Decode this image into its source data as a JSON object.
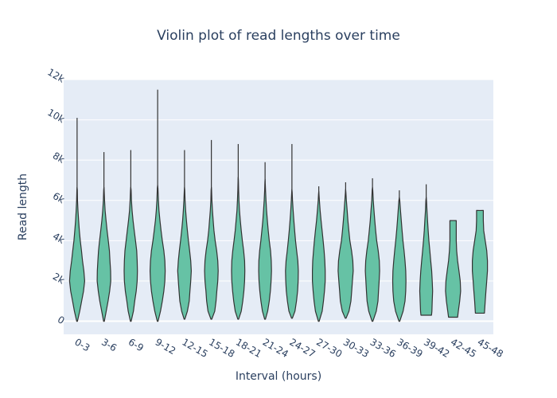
{
  "chart_data": {
    "type": "violin",
    "title": "Violin plot of read lengths over time",
    "xlabel": "Interval (hours)",
    "ylabel": "Read length",
    "ylim": [
      -650,
      12000
    ],
    "yticks": [
      0,
      2000,
      4000,
      6000,
      8000,
      10000,
      12000
    ],
    "ytick_labels": [
      "0",
      "2k",
      "4k",
      "6k",
      "8k",
      "10k",
      "12k"
    ],
    "grid": true,
    "legend": "none",
    "colors": {
      "fill": "#66c2a5",
      "stroke": "#333333",
      "plot_bg": "#e5ecf6",
      "text": "#2a3f5f"
    },
    "categories": [
      "0-3",
      "3-6",
      "6-9",
      "9-12",
      "12-15",
      "15-18",
      "18-21",
      "21-24",
      "24-27",
      "27-30",
      "30-33",
      "33-36",
      "36-39",
      "39-42",
      "42-45",
      "45-48"
    ],
    "violins": [
      {
        "label": "0-3",
        "min": 0,
        "max": 10100,
        "profile": [
          [
            0,
            0.05
          ],
          [
            500,
            0.35
          ],
          [
            1000,
            0.6
          ],
          [
            1500,
            0.85
          ],
          [
            2000,
            1.0
          ],
          [
            2500,
            0.9
          ],
          [
            3000,
            0.72
          ],
          [
            3500,
            0.58
          ],
          [
            4000,
            0.42
          ],
          [
            4500,
            0.3
          ],
          [
            5000,
            0.2
          ],
          [
            5500,
            0.12
          ],
          [
            6000,
            0.06
          ],
          [
            6500,
            0.03
          ]
        ]
      },
      {
        "label": "3-6",
        "min": 0,
        "max": 8400,
        "profile": [
          [
            0,
            0.05
          ],
          [
            500,
            0.3
          ],
          [
            1000,
            0.55
          ],
          [
            1500,
            0.75
          ],
          [
            2000,
            0.9
          ],
          [
            2500,
            0.88
          ],
          [
            3000,
            0.8
          ],
          [
            3500,
            0.72
          ],
          [
            4000,
            0.58
          ],
          [
            4500,
            0.42
          ],
          [
            5000,
            0.28
          ],
          [
            5500,
            0.16
          ],
          [
            6000,
            0.08
          ],
          [
            6500,
            0.03
          ]
        ]
      },
      {
        "label": "6-9",
        "min": 0,
        "max": 8500,
        "profile": [
          [
            0,
            0.05
          ],
          [
            500,
            0.35
          ],
          [
            1000,
            0.52
          ],
          [
            1500,
            0.72
          ],
          [
            2000,
            0.85
          ],
          [
            2500,
            0.88
          ],
          [
            3000,
            0.85
          ],
          [
            3500,
            0.78
          ],
          [
            4000,
            0.62
          ],
          [
            4500,
            0.46
          ],
          [
            5000,
            0.3
          ],
          [
            5500,
            0.17
          ],
          [
            6000,
            0.09
          ],
          [
            6500,
            0.04
          ]
        ]
      },
      {
        "label": "9-12",
        "min": 0,
        "max": 11500,
        "profile": [
          [
            0,
            0.05
          ],
          [
            500,
            0.38
          ],
          [
            1000,
            0.62
          ],
          [
            1500,
            0.82
          ],
          [
            2000,
            0.95
          ],
          [
            2500,
            1.0
          ],
          [
            3000,
            0.95
          ],
          [
            3500,
            0.82
          ],
          [
            4000,
            0.62
          ],
          [
            4500,
            0.45
          ],
          [
            5000,
            0.3
          ],
          [
            5500,
            0.18
          ],
          [
            6000,
            0.1
          ],
          [
            6600,
            0.04
          ]
        ]
      },
      {
        "label": "12-15",
        "min": 100,
        "max": 8500,
        "profile": [
          [
            100,
            0.05
          ],
          [
            500,
            0.38
          ],
          [
            1000,
            0.62
          ],
          [
            1500,
            0.72
          ],
          [
            2000,
            0.82
          ],
          [
            2500,
            0.9
          ],
          [
            3000,
            0.82
          ],
          [
            3500,
            0.68
          ],
          [
            4000,
            0.52
          ],
          [
            4500,
            0.38
          ],
          [
            5000,
            0.25
          ],
          [
            5500,
            0.15
          ],
          [
            6000,
            0.08
          ],
          [
            6500,
            0.03
          ]
        ]
      },
      {
        "label": "15-18",
        "min": 100,
        "max": 9000,
        "profile": [
          [
            100,
            0.05
          ],
          [
            500,
            0.45
          ],
          [
            1000,
            0.62
          ],
          [
            1500,
            0.72
          ],
          [
            2000,
            0.85
          ],
          [
            2500,
            0.9
          ],
          [
            3000,
            0.85
          ],
          [
            3500,
            0.7
          ],
          [
            4000,
            0.5
          ],
          [
            4500,
            0.35
          ],
          [
            5000,
            0.24
          ],
          [
            5500,
            0.14
          ],
          [
            6000,
            0.07
          ],
          [
            6500,
            0.03
          ]
        ]
      },
      {
        "label": "18-21",
        "min": 100,
        "max": 8800,
        "profile": [
          [
            100,
            0.05
          ],
          [
            500,
            0.4
          ],
          [
            1000,
            0.6
          ],
          [
            1500,
            0.75
          ],
          [
            2000,
            0.85
          ],
          [
            2500,
            0.88
          ],
          [
            3000,
            0.85
          ],
          [
            3500,
            0.72
          ],
          [
            4000,
            0.55
          ],
          [
            4500,
            0.4
          ],
          [
            5000,
            0.28
          ],
          [
            5500,
            0.17
          ],
          [
            6000,
            0.1
          ],
          [
            6500,
            0.05
          ],
          [
            7000,
            0.02
          ]
        ]
      },
      {
        "label": "21-24",
        "min": 100,
        "max": 7900,
        "profile": [
          [
            100,
            0.05
          ],
          [
            500,
            0.35
          ],
          [
            1000,
            0.55
          ],
          [
            1500,
            0.7
          ],
          [
            2000,
            0.8
          ],
          [
            2500,
            0.85
          ],
          [
            3000,
            0.82
          ],
          [
            3500,
            0.72
          ],
          [
            4000,
            0.56
          ],
          [
            4500,
            0.42
          ],
          [
            5000,
            0.3
          ],
          [
            5500,
            0.2
          ],
          [
            6000,
            0.12
          ],
          [
            6500,
            0.06
          ],
          [
            6900,
            0.02
          ]
        ]
      },
      {
        "label": "24-27",
        "min": 150,
        "max": 8800,
        "profile": [
          [
            150,
            0.05
          ],
          [
            500,
            0.4
          ],
          [
            1000,
            0.6
          ],
          [
            1500,
            0.75
          ],
          [
            2000,
            0.82
          ],
          [
            2500,
            0.85
          ],
          [
            3000,
            0.78
          ],
          [
            3500,
            0.62
          ],
          [
            4000,
            0.48
          ],
          [
            4500,
            0.36
          ],
          [
            5000,
            0.25
          ],
          [
            5500,
            0.16
          ],
          [
            6000,
            0.08
          ],
          [
            6400,
            0.03
          ]
        ]
      },
      {
        "label": "27-30",
        "min": 0,
        "max": 6700,
        "profile": [
          [
            0,
            0.05
          ],
          [
            500,
            0.45
          ],
          [
            1000,
            0.62
          ],
          [
            1500,
            0.75
          ],
          [
            2000,
            0.85
          ],
          [
            2500,
            0.85
          ],
          [
            3000,
            0.8
          ],
          [
            3500,
            0.7
          ],
          [
            4000,
            0.58
          ],
          [
            4500,
            0.44
          ],
          [
            5000,
            0.3
          ],
          [
            5500,
            0.18
          ],
          [
            6000,
            0.08
          ],
          [
            6300,
            0.03
          ]
        ]
      },
      {
        "label": "30-33",
        "min": 150,
        "max": 6900,
        "profile": [
          [
            150,
            0.05
          ],
          [
            500,
            0.45
          ],
          [
            1000,
            0.7
          ],
          [
            1500,
            0.8
          ],
          [
            2000,
            0.9
          ],
          [
            2500,
            1.0
          ],
          [
            3000,
            0.95
          ],
          [
            3500,
            0.78
          ],
          [
            4000,
            0.56
          ],
          [
            4500,
            0.42
          ],
          [
            5000,
            0.3
          ],
          [
            5500,
            0.2
          ],
          [
            6000,
            0.1
          ],
          [
            6400,
            0.03
          ]
        ]
      },
      {
        "label": "33-36",
        "min": 0,
        "max": 7100,
        "profile": [
          [
            0,
            0.05
          ],
          [
            500,
            0.5
          ],
          [
            1000,
            0.72
          ],
          [
            1500,
            0.8
          ],
          [
            2000,
            0.88
          ],
          [
            2500,
            0.95
          ],
          [
            3000,
            0.9
          ],
          [
            3500,
            0.75
          ],
          [
            4000,
            0.56
          ],
          [
            4500,
            0.42
          ],
          [
            5000,
            0.3
          ],
          [
            5500,
            0.2
          ],
          [
            6000,
            0.1
          ],
          [
            6500,
            0.04
          ]
        ]
      },
      {
        "label": "36-39",
        "min": 0,
        "max": 6500,
        "profile": [
          [
            0,
            0.05
          ],
          [
            500,
            0.5
          ],
          [
            1000,
            0.75
          ],
          [
            1500,
            0.85
          ],
          [
            2000,
            0.88
          ],
          [
            2500,
            0.85
          ],
          [
            3000,
            0.75
          ],
          [
            3500,
            0.62
          ],
          [
            4000,
            0.48
          ],
          [
            4500,
            0.36
          ],
          [
            5000,
            0.25
          ],
          [
            5500,
            0.15
          ],
          [
            6000,
            0.06
          ]
        ]
      },
      {
        "label": "39-42",
        "min": 300,
        "max": 6800,
        "profile": [
          [
            300,
            0.7
          ],
          [
            500,
            0.75
          ],
          [
            1000,
            0.8
          ],
          [
            1500,
            0.85
          ],
          [
            2000,
            0.8
          ],
          [
            2500,
            0.72
          ],
          [
            3000,
            0.6
          ],
          [
            3500,
            0.48
          ],
          [
            4000,
            0.36
          ],
          [
            4500,
            0.26
          ],
          [
            5000,
            0.18
          ],
          [
            5500,
            0.1
          ],
          [
            6000,
            0.04
          ]
        ]
      },
      {
        "label": "42-45",
        "min": 200,
        "max": 5000,
        "profile": [
          [
            200,
            0.6
          ],
          [
            500,
            0.7
          ],
          [
            1000,
            0.88
          ],
          [
            1500,
            1.0
          ],
          [
            2000,
            0.95
          ],
          [
            2500,
            0.78
          ],
          [
            3000,
            0.6
          ],
          [
            3500,
            0.48
          ],
          [
            4000,
            0.42
          ],
          [
            4500,
            0.42
          ],
          [
            5000,
            0.42
          ]
        ]
      },
      {
        "label": "45-48",
        "min": 400,
        "max": 5500,
        "profile": [
          [
            400,
            0.6
          ],
          [
            1000,
            0.7
          ],
          [
            1500,
            0.8
          ],
          [
            2000,
            0.9
          ],
          [
            2500,
            1.0
          ],
          [
            3000,
            1.0
          ],
          [
            3500,
            0.9
          ],
          [
            4000,
            0.7
          ],
          [
            4500,
            0.5
          ],
          [
            5000,
            0.45
          ],
          [
            5500,
            0.45
          ]
        ]
      }
    ]
  }
}
